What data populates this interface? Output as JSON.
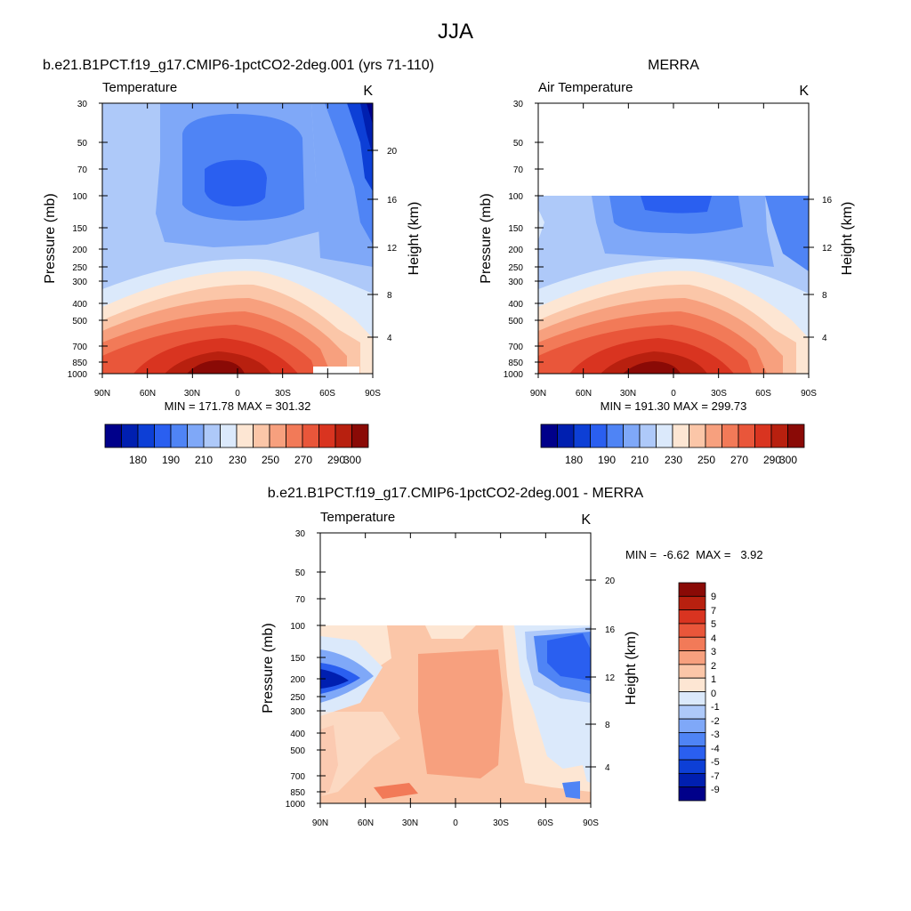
{
  "page_title": "JJA",
  "colors": {
    "abs_palette": [
      "#00008a",
      "#001fb0",
      "#0d3fd6",
      "#2a5ff0",
      "#4f84f5",
      "#7fa8f8",
      "#aec9f9",
      "#dbe9fb",
      "#fde6d3",
      "#fbc6a8",
      "#f7a07e",
      "#f27a58",
      "#e9563a",
      "#d93420",
      "#b8200f",
      "#8a0a06"
    ],
    "diff_palette": [
      "#00008a",
      "#001fb0",
      "#0d3fd6",
      "#2a5ff0",
      "#4f84f5",
      "#7fa8f8",
      "#aec9f9",
      "#dbe9fb",
      "#fde6d3",
      "#fbc6a8",
      "#f7a07e",
      "#f27a58",
      "#e9563a",
      "#d93420",
      "#b8200f",
      "#8a0a06"
    ]
  },
  "panels": {
    "model": {
      "title": "b.e21.B1PCT.f19_g17.CMIP6-1pctCO2-2deg.001 (yrs 71-110)",
      "left_label": "Temperature",
      "units": "K",
      "stats": "MIN = 171.78  MAX = 301.32",
      "colorbar_labels": [
        "180",
        "190",
        "210",
        "230",
        "250",
        "270",
        "290",
        "300"
      ]
    },
    "obs": {
      "title": "MERRA",
      "left_label": "Air Temperature",
      "units": "K",
      "stats": "MIN = 191.30  MAX = 299.73",
      "colorbar_labels": [
        "180",
        "190",
        "210",
        "230",
        "250",
        "270",
        "290",
        "300"
      ]
    },
    "diff": {
      "title": "b.e21.B1PCT.f19_g17.CMIP6-1pctCO2-2deg.001 - MERRA",
      "left_label": "Temperature",
      "units": "K",
      "stats": "MIN =  -6.62  MAX =   3.92",
      "colorbar_labels": [
        "9",
        "7",
        "5",
        "4",
        "3",
        "2",
        "1",
        "0",
        "-1",
        "-2",
        "-3",
        "-4",
        "-5",
        "-7",
        "-9"
      ]
    }
  },
  "axes": {
    "ylabel": "Pressure (mb)",
    "y2label": "Height (km)",
    "pressure_ticks": [
      "30",
      "50",
      "70",
      "100",
      "150",
      "200",
      "250",
      "300",
      "400",
      "500",
      "700",
      "850",
      "1000"
    ],
    "height_ticks": [
      "20",
      "16",
      "12",
      "8",
      "4"
    ],
    "lat_ticks": [
      "90N",
      "60N",
      "30N",
      "0",
      "30S",
      "60S",
      "90S"
    ]
  },
  "chart_data": [
    {
      "type": "heatmap",
      "panel": "model",
      "title": "b.e21.B1PCT.f19_g17.CMIP6-1pctCO2-2deg.001 (yrs 71-110)",
      "field": "Temperature",
      "units": "K",
      "x_range": [
        "90N",
        "90S"
      ],
      "y_range_mb": [
        1000,
        30
      ],
      "min": 171.78,
      "max": 301.32,
      "levels": [
        180,
        190,
        200,
        210,
        220,
        230,
        240,
        250,
        260,
        270,
        280,
        290,
        295,
        300
      ]
    },
    {
      "type": "heatmap",
      "panel": "obs",
      "title": "MERRA",
      "field": "Air Temperature",
      "units": "K",
      "x_range": [
        "90N",
        "90S"
      ],
      "y_range_mb": [
        1000,
        100
      ],
      "min": 191.3,
      "max": 299.73,
      "levels": [
        180,
        190,
        200,
        210,
        220,
        230,
        240,
        250,
        260,
        270,
        280,
        290,
        295,
        300
      ]
    },
    {
      "type": "heatmap",
      "panel": "diff",
      "title": "b.e21.B1PCT.f19_g17.CMIP6-1pctCO2-2deg.001 - MERRA",
      "field": "Temperature",
      "units": "K",
      "x_range": [
        "90N",
        "90S"
      ],
      "y_range_mb": [
        1000,
        100
      ],
      "min": -6.62,
      "max": 3.92,
      "levels": [
        -9,
        -7,
        -5,
        -4,
        -3,
        -2,
        -1,
        0,
        1,
        2,
        3,
        4,
        5,
        7,
        9
      ]
    }
  ]
}
